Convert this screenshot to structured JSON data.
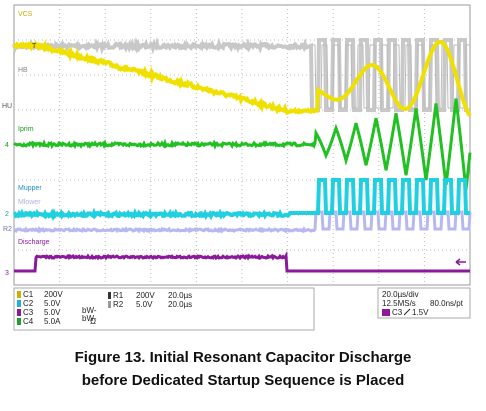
{
  "screen": {
    "trace_labels": {
      "vcs": "VCS",
      "hb": "HB",
      "iprim": "Iprim",
      "mupper": "Mupper",
      "mlower": "Mlower",
      "discharge": "Discharge"
    },
    "markers": {
      "trigger": "T",
      "hu": "HU",
      "ch4": "4",
      "ch2": "2",
      "ref2": "R2",
      "ch3": "3"
    }
  },
  "channels": [
    {
      "name": "C1",
      "scale": "200V"
    },
    {
      "name": "C2",
      "scale": "5.0V"
    },
    {
      "name": "C3",
      "scale": "5.0V"
    },
    {
      "name": "C4",
      "scale": "5.0A",
      "unit": "Ω"
    }
  ],
  "bandwidth": [
    "bW-",
    "bW-"
  ],
  "refs": [
    {
      "name": "R1",
      "scale": "200V",
      "time": "20.0µs"
    },
    {
      "name": "R2",
      "scale": "5.0V",
      "time": "20.0µs"
    }
  ],
  "timebase": {
    "div": "20.0µs/div",
    "rate": "12.5MS/s",
    "resolution": "80.0ns/pt",
    "trigger_channel": "C3",
    "trigger_level": "1.5V"
  },
  "caption": [
    "Figure 13. Initial Resonant Capacitor Discharge",
    "before Dedicated Startup Sequence is Placed"
  ]
}
